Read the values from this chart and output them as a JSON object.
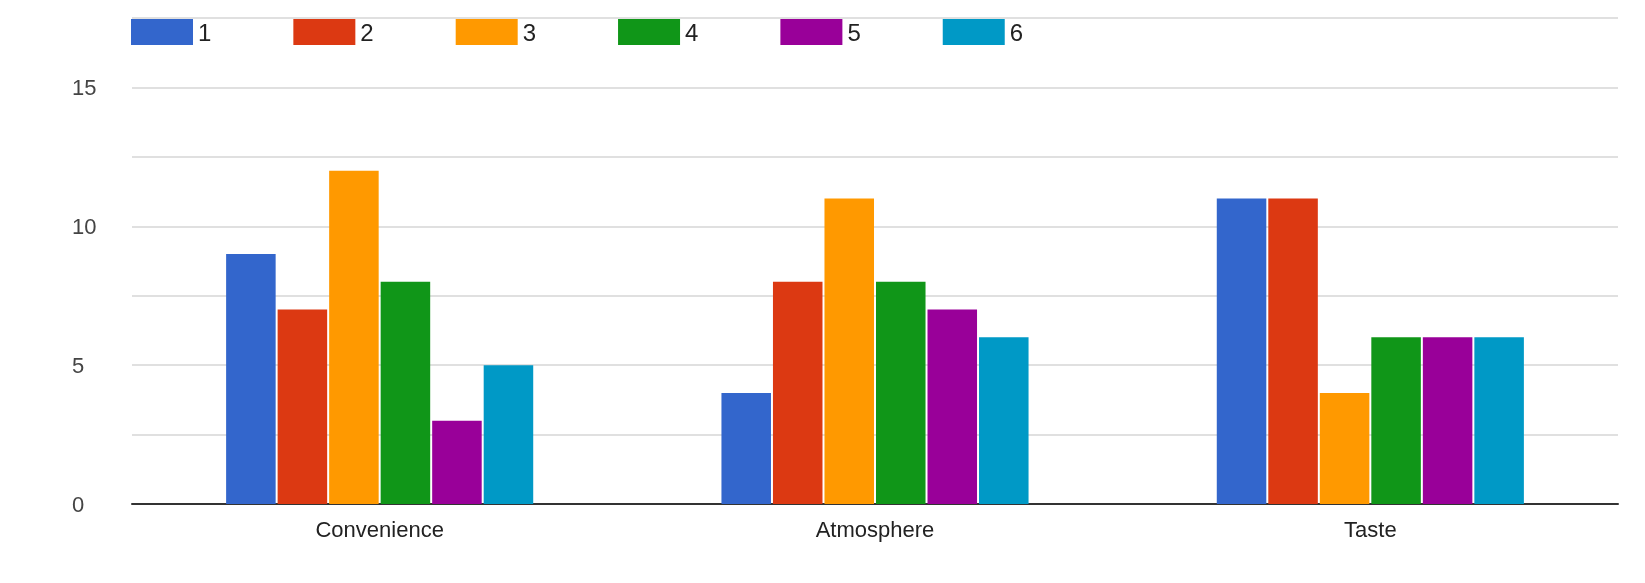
{
  "chart_data": {
    "type": "bar",
    "categories": [
      "Convenience",
      "Atmosphere",
      "Taste"
    ],
    "series": [
      {
        "name": "1",
        "color": "#3366cc",
        "values": [
          9,
          4,
          11
        ]
      },
      {
        "name": "2",
        "color": "#dc3912",
        "values": [
          7,
          8,
          11
        ]
      },
      {
        "name": "3",
        "color": "#ff9900",
        "values": [
          12,
          11,
          4
        ]
      },
      {
        "name": "4",
        "color": "#109618",
        "values": [
          8,
          8,
          6
        ]
      },
      {
        "name": "5",
        "color": "#990099",
        "values": [
          3,
          7,
          6
        ]
      },
      {
        "name": "6",
        "color": "#0099c6",
        "values": [
          5,
          6,
          6
        ]
      }
    ],
    "ylim": [
      0,
      17.5
    ],
    "yticks": [
      0,
      {
        "value": 2.5,
        "label": null
      },
      5,
      {
        "value": 7.5,
        "label": null
      },
      10,
      {
        "value": 12.5,
        "label": null
      },
      15,
      {
        "value": 17.5,
        "label": null
      }
    ],
    "grid": "y",
    "legend": "top left"
  }
}
